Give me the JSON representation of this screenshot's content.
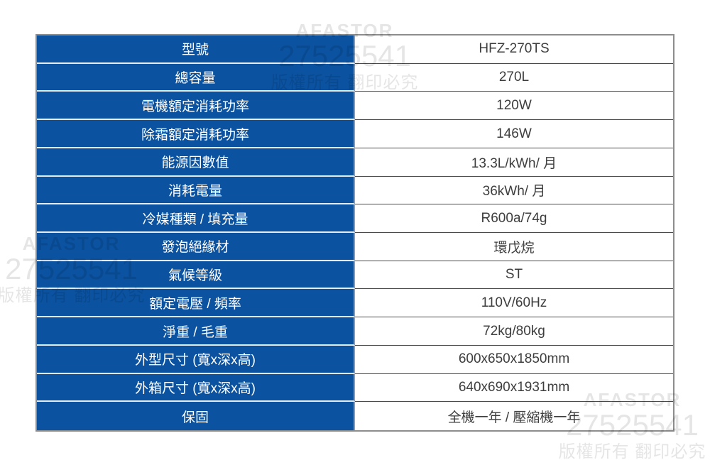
{
  "table": {
    "rows": [
      {
        "label": "型號",
        "value": "HFZ-270TS"
      },
      {
        "label": "總容量",
        "value": "270L"
      },
      {
        "label": "電機額定消耗功率",
        "value": "120W"
      },
      {
        "label": "除霜額定消耗功率",
        "value": "146W"
      },
      {
        "label": "能源因數值",
        "value": "13.3L/kWh/ 月"
      },
      {
        "label": "消耗電量",
        "value": "36kWh/ 月"
      },
      {
        "label": "冷媒種類 / 填充量",
        "value": "R600a/74g"
      },
      {
        "label": "發泡絕緣材",
        "value": "環戊烷"
      },
      {
        "label": "氣候等級",
        "value": "ST"
      },
      {
        "label": "額定電壓 / 頻率",
        "value": "110V/60Hz"
      },
      {
        "label": "淨重 / 毛重",
        "value": "72kg/80kg"
      },
      {
        "label": "外型尺寸 (寬x深x高)",
        "value": "600x650x1850mm"
      },
      {
        "label": "外箱尺寸 (寬x深x高)",
        "value": "640x690x1931mm"
      },
      {
        "label": "保固",
        "value": "全機一年 / 壓縮機一年"
      }
    ]
  },
  "watermark": {
    "brand": "AFASTOR",
    "number": "27525541",
    "notice": "版權所有 翻印必究"
  },
  "colors": {
    "header_blue": "#0b52a0",
    "value_text": "#3d3d3d",
    "outer_border": "#8d8d8d",
    "value_divider": "#4a4a4a",
    "label_divider": "#e6ecf4"
  }
}
